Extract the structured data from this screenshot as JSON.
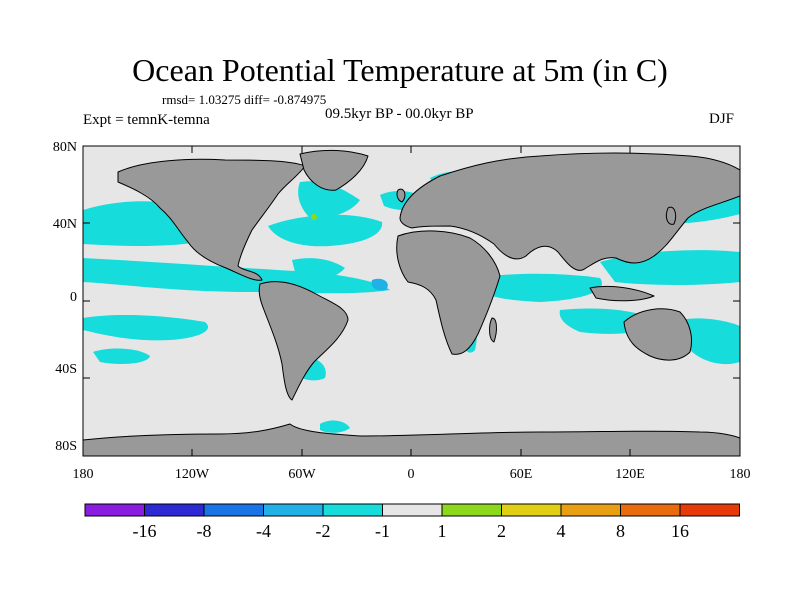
{
  "title": "Ocean Potential Temperature at 5m (in C)",
  "stats": "rmsd= 1.03275  diff= -0.874975",
  "experiment": "Expt = temnK-temna",
  "period": "09.5kyr BP - 00.0kyr BP",
  "season": "DJF",
  "lat_ticks": [
    "80N",
    "40N",
    "0",
    "40S",
    "80S"
  ],
  "lon_ticks": [
    "180",
    "120W",
    "60W",
    "0",
    "60E",
    "120E",
    "180"
  ],
  "colorbar": {
    "labels": [
      "-16",
      "-8",
      "-4",
      "-2",
      "-1",
      "1",
      "2",
      "4",
      "8",
      "16"
    ],
    "colors": [
      "#8a1ee0",
      "#2d2ad4",
      "#1a74e6",
      "#21b1e6",
      "#16dcdc",
      "#e6e6e6",
      "#8ed81c",
      "#e0cf14",
      "#e8a012",
      "#e86c0e",
      "#e63a0a"
    ]
  },
  "colors": {
    "ocean_neutral": "#e6e6e6",
    "land": "#999999",
    "anomaly_cyan": "#16dcdc",
    "anomaly_blue": "#21b1e6"
  }
}
